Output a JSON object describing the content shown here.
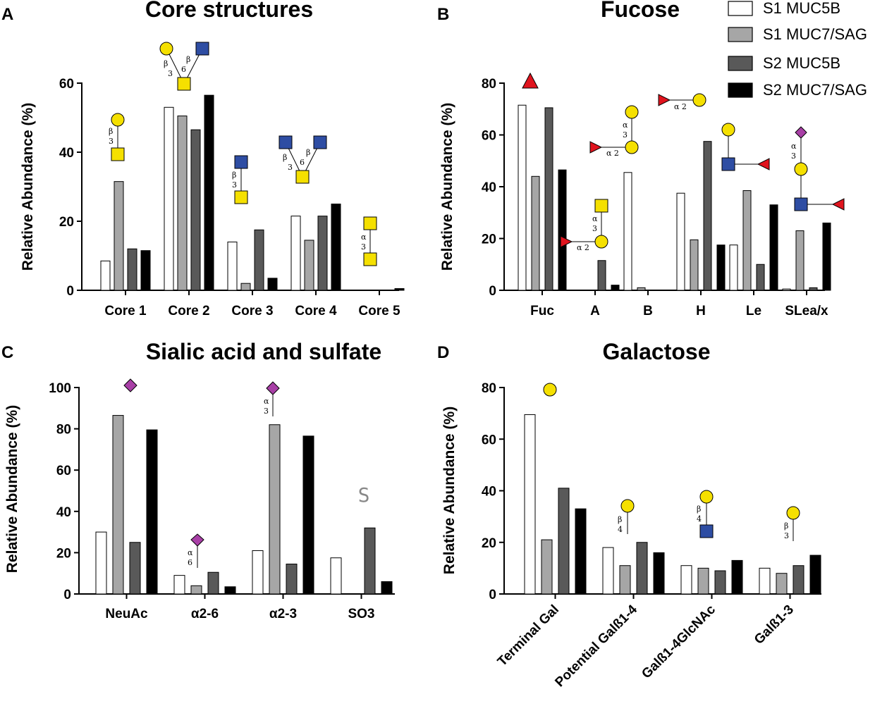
{
  "legend": {
    "series_names": [
      "S1 MUC5B",
      "S1 MUC7/SAG",
      "S2 MUC5B",
      "S2 MUC7/SAG"
    ],
    "series_colors": [
      "#ffffff",
      "#a6a6a6",
      "#595959",
      "#000000"
    ]
  },
  "glycan_colors": {
    "galactose": "#f5e000",
    "galnac": "#f5e000",
    "glcnac": "#2e4da3",
    "fucose": "#e0141e",
    "neuac": "#a83fa6"
  },
  "sulfate_symbol": "S",
  "chart_data": [
    {
      "letter": "A",
      "type": "bar",
      "title": "Core structures",
      "ylabel": "Relative Abundance (%)",
      "xlabel": "",
      "ylim": [
        0,
        60
      ],
      "yticks": [
        0,
        20,
        40,
        60
      ],
      "categories": [
        "Core 1",
        "Core 2",
        "Core 3",
        "Core 4",
        "Core 5"
      ],
      "series": [
        {
          "name": "S1 MUC5B",
          "values": [
            8.5,
            53,
            14,
            21.5,
            0
          ]
        },
        {
          "name": "S1 MUC7/SAG",
          "values": [
            31.5,
            50.5,
            2,
            14.5,
            0
          ]
        },
        {
          "name": "S2 MUC5B",
          "values": [
            12,
            46.5,
            17.5,
            21.5,
            0
          ]
        },
        {
          "name": "S2 MUC7/SAG",
          "values": [
            11.5,
            56.5,
            3.5,
            25,
            0.5
          ]
        }
      ],
      "linkage_labels": [
        [
          "β",
          "3"
        ],
        [
          "β",
          "3",
          "β",
          "6"
        ],
        [
          "β",
          "3"
        ],
        [
          "β",
          "3",
          "β",
          "6"
        ],
        [
          "α",
          "3"
        ]
      ]
    },
    {
      "letter": "B",
      "type": "bar",
      "title": "Fucose",
      "ylabel": "Relative Abundance (%)",
      "xlabel": "",
      "ylim": [
        0,
        80
      ],
      "yticks": [
        0,
        20,
        40,
        60,
        80
      ],
      "categories": [
        "Fuc",
        "A",
        "B",
        "H",
        "Le",
        "SLea/x"
      ],
      "series": [
        {
          "name": "S1 MUC5B",
          "values": [
            71.5,
            0,
            45.5,
            37.5,
            17.5,
            0.5
          ]
        },
        {
          "name": "S1 MUC7/SAG",
          "values": [
            44,
            0,
            1,
            19.5,
            38.5,
            23
          ]
        },
        {
          "name": "S2 MUC5B",
          "values": [
            70.5,
            11.5,
            0,
            57.5,
            10,
            1
          ]
        },
        {
          "name": "S2 MUC7/SAG",
          "values": [
            46.5,
            2,
            0,
            17.5,
            33,
            26
          ]
        }
      ],
      "linkage_labels": [
        [
          "α 2",
          "α",
          "3"
        ],
        [
          "α 2",
          "α",
          "3"
        ],
        [
          "α 2"
        ],
        [
          "α",
          "3"
        ]
      ]
    },
    {
      "letter": "C",
      "type": "bar",
      "title": "Sialic acid and sulfate",
      "ylabel": "Relative Abundance (%)",
      "xlabel": "",
      "ylim": [
        0,
        100
      ],
      "yticks": [
        0,
        20,
        40,
        60,
        80,
        100
      ],
      "categories": [
        "NeuAc",
        "α2-6",
        "α2-3",
        "SO3"
      ],
      "series": [
        {
          "name": "S1 MUC5B",
          "values": [
            30,
            9,
            21,
            17.5
          ]
        },
        {
          "name": "S1 MUC7/SAG",
          "values": [
            86.5,
            4,
            82,
            0
          ]
        },
        {
          "name": "S2 MUC5B",
          "values": [
            25,
            10.5,
            14.5,
            32
          ]
        },
        {
          "name": "S2 MUC7/SAG",
          "values": [
            79.5,
            3.5,
            76.5,
            6
          ]
        }
      ],
      "linkage_labels": [
        [
          "α",
          "6"
        ],
        [
          "α",
          "3"
        ]
      ]
    },
    {
      "letter": "D",
      "type": "bar",
      "title": "Galactose",
      "ylabel": "Relative Abundance (%)",
      "xlabel": "",
      "ylim": [
        0,
        80
      ],
      "yticks": [
        0,
        20,
        40,
        60,
        80
      ],
      "categories": [
        "Terminal Gal",
        "Potential Galß1-4",
        "Galß1-4GlcNAc",
        "Galß1-3"
      ],
      "series": [
        {
          "name": "S1 MUC5B",
          "values": [
            69.5,
            18,
            11,
            10
          ]
        },
        {
          "name": "S1 MUC7/SAG",
          "values": [
            21,
            11,
            10,
            8
          ]
        },
        {
          "name": "S2 MUC5B",
          "values": [
            41,
            20,
            9,
            11
          ]
        },
        {
          "name": "S2 MUC7/SAG",
          "values": [
            33,
            16,
            13,
            15
          ]
        }
      ],
      "linkage_labels": [
        [
          "β",
          "4"
        ],
        [
          "β",
          "4"
        ],
        [
          "β",
          "3"
        ]
      ]
    }
  ]
}
